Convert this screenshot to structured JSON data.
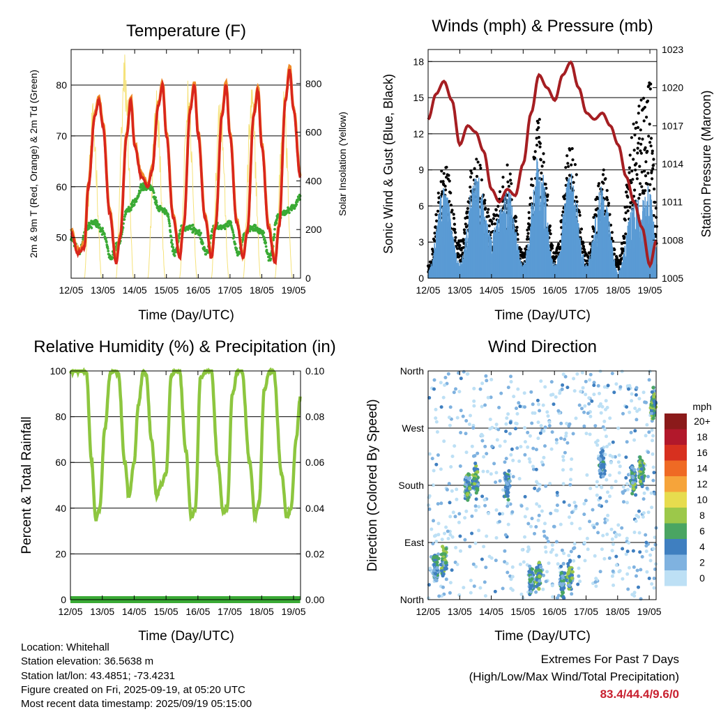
{
  "colors": {
    "temp_2m": "#d9261c",
    "temp_9m": "#f08c2a",
    "dewpoint": "#3aaa35",
    "solar": "#f5e27a",
    "gust": "#000000",
    "wind": "#5a9bd4",
    "pressure": "#a51e22",
    "humidity": "#8dc63f",
    "precip": "#3aaa35",
    "extremes_text": "#c8202f"
  },
  "time_ticks": [
    "12/05",
    "13/05",
    "14/05",
    "15/05",
    "16/05",
    "17/05",
    "18/05",
    "19/05"
  ],
  "panels": {
    "temperature": {
      "title": "Temperature (F)",
      "xlabel": "Time (Day/UTC)",
      "ylabel_left": "2m & 9m T (Red, Orange) & 2m Td (Green)",
      "ylabel_right": "Solar Insolation (Yellow)",
      "yticks_left": [
        "50",
        "60",
        "70",
        "80"
      ],
      "yticks_right": [
        "0",
        "200",
        "400",
        "600",
        "800"
      ]
    },
    "winds": {
      "title": "Winds (mph) & Pressure (mb)",
      "xlabel": "Time (Day/UTC)",
      "ylabel_left": "Sonic Wind & Gust (Blue, Black)",
      "ylabel_right": "Station Pressure (Maroon)",
      "yticks_left": [
        "0",
        "3",
        "6",
        "9",
        "12",
        "15",
        "18"
      ],
      "yticks_right": [
        "1005",
        "1008",
        "1011",
        "1014",
        "1017",
        "1020",
        "1023"
      ]
    },
    "humidity": {
      "title": "Relative Humidity (%) & Precipitation (in)",
      "xlabel": "Time (Day/UTC)",
      "ylabel_left": "Percent & Total Rainfall",
      "yticks_left": [
        "0",
        "20",
        "40",
        "60",
        "80",
        "100"
      ],
      "yticks_right": [
        "0.00",
        "0.02",
        "0.04",
        "0.06",
        "0.08",
        "0.10"
      ]
    },
    "direction": {
      "title": "Wind Direction",
      "xlabel": "Time (Day/UTC)",
      "ylabel_left": "Direction (Colored By Speed)",
      "yticks_left": [
        "North",
        "East",
        "South",
        "West",
        "North"
      ],
      "legend_title": "mph",
      "legend_labels": [
        "20+",
        "18",
        "16",
        "14",
        "12",
        "10",
        "8",
        "6",
        "4",
        "2",
        "0"
      ],
      "legend_colors": [
        "#8b1a1a",
        "#b2182b",
        "#d7301f",
        "#ef6a24",
        "#f6a43a",
        "#e7dc4e",
        "#9cc84a",
        "#4aa562",
        "#3f7fc0",
        "#7fb2e0",
        "#bde0f5"
      ]
    }
  },
  "info": {
    "location": "Location: Whitehall",
    "elevation": "Station elevation: 36.5638 m",
    "latlon": "Station lat/lon: 43.4851; -73.4231",
    "created": "Figure created on Fri, 2025-09-19, at 05:20 UTC",
    "recent": "Most recent data timestamp: 2025/09/19 05:15:00"
  },
  "extremes": {
    "line1": "Extremes For Past 7 Days",
    "line2": "(High/Low/Max Wind/Total Precipitation)",
    "values": "83.4/44.4/9.6/0"
  },
  "chart_data": [
    {
      "type": "line",
      "title": "Temperature (F)",
      "xlabel": "Time (Day/UTC)",
      "ylabel": "2m & 9m T (Red, Orange) & 2m Td (Green)",
      "ylabel_right": "Solar Insolation (Yellow)",
      "xlim": [
        "12/05",
        "19/05"
      ],
      "ylim": [
        42,
        87
      ],
      "ylim_right": [
        0,
        940
      ],
      "grid": true,
      "series": [
        {
          "name": "2m T",
          "x": [
            "12/05 00:00",
            "12/05 05:00",
            "12/05 10:00",
            "12/05 13:00",
            "12/05 18:00",
            "12/05 21:00",
            "13/05 00:00",
            "13/05 05:00",
            "13/05 10:00",
            "13/05 13:00",
            "13/05 18:00",
            "13/05 21:00",
            "14/05 00:00",
            "14/05 05:00",
            "14/05 10:00",
            "14/05 13:00",
            "14/05 18:00",
            "14/05 21:00",
            "15/05 00:00",
            "15/05 05:00",
            "15/05 10:00",
            "15/05 13:00",
            "15/05 18:00",
            "15/05 21:00",
            "16/05 00:00",
            "16/05 05:00",
            "16/05 10:00",
            "16/05 13:00",
            "16/05 18:00",
            "16/05 21:00",
            "17/05 00:00",
            "17/05 05:00",
            "17/05 10:00",
            "17/05 13:00",
            "17/05 18:00",
            "17/05 21:00",
            "18/05 00:00",
            "18/05 05:00",
            "18/05 10:00",
            "18/05 13:00",
            "18/05 18:00",
            "18/05 21:00",
            "19/05 00:00",
            "19/05 05:00"
          ],
          "values": [
            51,
            47,
            48,
            60,
            74,
            77,
            72,
            55,
            45,
            50,
            70,
            77,
            68,
            62,
            60,
            63,
            76,
            80,
            70,
            54,
            46,
            52,
            75,
            80,
            70,
            54,
            46,
            52,
            74,
            80,
            70,
            53,
            46,
            51,
            74,
            79,
            68,
            52,
            45,
            52,
            77,
            83,
            75,
            62
          ]
        },
        {
          "name": "2m Td",
          "x": [
            "12/05 00:00",
            "12/05 06:00",
            "12/05 12:00",
            "12/05 18:00",
            "13/05 00:00",
            "13/05 06:00",
            "13/05 12:00",
            "13/05 18:00",
            "14/05 00:00",
            "14/05 06:00",
            "14/05 12:00",
            "14/05 18:00",
            "15/05 00:00",
            "15/05 06:00",
            "15/05 12:00",
            "15/05 18:00",
            "16/05 00:00",
            "16/05 06:00",
            "16/05 12:00",
            "16/05 18:00",
            "17/05 00:00",
            "17/05 06:00",
            "17/05 12:00",
            "17/05 18:00",
            "18/05 00:00",
            "18/05 06:00",
            "18/05 12:00",
            "18/05 18:00",
            "19/05 00:00",
            "19/05 05:00"
          ],
          "values": [
            50,
            47,
            52,
            53,
            51,
            46,
            49,
            55,
            57,
            60,
            60,
            56,
            55,
            47,
            52,
            52,
            51,
            47,
            52,
            52,
            53,
            47,
            51,
            52,
            51,
            46,
            54,
            55,
            56,
            58
          ]
        },
        {
          "name": "Solar Insolation",
          "axis": "right",
          "peaks_per_day": [
            720,
            940,
            800,
            830,
            810,
            820,
            780
          ]
        }
      ]
    },
    {
      "type": "line",
      "title": "Winds (mph) & Pressure (mb)",
      "xlabel": "Time (Day/UTC)",
      "ylabel": "Sonic Wind & Gust (Blue, Black)",
      "ylabel_right": "Station Pressure (Maroon)",
      "xlim": [
        "12/05",
        "19/05"
      ],
      "ylim": [
        0,
        19
      ],
      "ylim_right": [
        1005,
        1023
      ],
      "grid": true,
      "series": [
        {
          "name": "Station Pressure",
          "axis": "right",
          "x": [
            "12/05 00:00",
            "12/05 06:00",
            "12/05 12:00",
            "12/05 18:00",
            "13/05 00:00",
            "13/05 06:00",
            "13/05 12:00",
            "13/05 18:00",
            "14/05 00:00",
            "14/05 06:00",
            "14/05 12:00",
            "14/05 18:00",
            "15/05 00:00",
            "15/05 06:00",
            "15/05 12:00",
            "15/05 18:00",
            "16/05 00:00",
            "16/05 06:00",
            "16/05 12:00",
            "16/05 18:00",
            "17/05 00:00",
            "17/05 06:00",
            "17/05 12:00",
            "17/05 18:00",
            "18/05 00:00",
            "18/05 06:00",
            "18/05 12:00",
            "18/05 18:00",
            "19/05 00:00",
            "19/05 05:00"
          ],
          "values": [
            1017.5,
            1019.5,
            1020.5,
            1019,
            1015.5,
            1017,
            1016.5,
            1015,
            1012,
            1011,
            1012,
            1011.5,
            1014,
            1018,
            1021,
            1020,
            1019,
            1021,
            1022,
            1020,
            1018,
            1017.5,
            1018,
            1017,
            1015.5,
            1013,
            1011,
            1009,
            1006,
            1008
          ]
        },
        {
          "name": "Sonic Wind",
          "x": [
            "12/05 00:00",
            "12/05 12:00",
            "13/05 00:00",
            "13/05 12:00",
            "14/05 00:00",
            "14/05 12:00",
            "15/05 00:00",
            "15/05 12:00",
            "16/05 00:00",
            "16/05 12:00",
            "17/05 00:00",
            "17/05 12:00",
            "18/05 00:00",
            "18/05 12:00",
            "19/05 00:00",
            "19/05 05:00"
          ],
          "values": [
            0.5,
            6,
            1,
            7,
            3,
            6,
            1,
            8,
            1,
            7,
            1,
            6,
            0.5,
            5,
            6,
            2
          ]
        },
        {
          "name": "Gust",
          "x": [
            "12/05 00:00",
            "12/05 12:00",
            "13/05 00:00",
            "13/05 12:00",
            "14/05 00:00",
            "14/05 12:00",
            "15/05 00:00",
            "15/05 12:00",
            "16/05 00:00",
            "16/05 12:00",
            "17/05 00:00",
            "17/05 12:00",
            "18/05 00:00",
            "18/05 12:00",
            "19/05 00:00",
            "19/05 05:00"
          ],
          "values": [
            1,
            9.5,
            3,
            10,
            5,
            9,
            2,
            13,
            2,
            11,
            2,
            9,
            1.5,
            13,
            16,
            6
          ]
        }
      ]
    },
    {
      "type": "line",
      "title": "Relative Humidity (%) & Precipitation (in)",
      "xlabel": "Time (Day/UTC)",
      "ylabel": "Percent & Total Rainfall",
      "xlim": [
        "12/05",
        "19/05"
      ],
      "ylim": [
        0,
        100
      ],
      "ylim_right": [
        0.0,
        0.1
      ],
      "grid": true,
      "series": [
        {
          "name": "Relative Humidity",
          "x": [
            "12/05 00:00",
            "12/05 09:00",
            "12/05 12:00",
            "12/05 16:00",
            "12/05 19:00",
            "12/05 22:00",
            "13/05 02:00",
            "13/05 06:00",
            "13/05 09:00",
            "13/05 12:00",
            "13/05 17:00",
            "13/05 20:00",
            "14/05 00:00",
            "14/05 03:00",
            "14/05 07:00",
            "14/05 09:00",
            "14/05 13:00",
            "14/05 17:00",
            "14/05 20:00",
            "15/05 00:00",
            "15/05 04:00",
            "15/05 07:00",
            "15/05 10:00",
            "15/05 15:00",
            "15/05 19:00",
            "15/05 22:00",
            "16/05 02:00",
            "16/05 06:00",
            "16/05 10:00",
            "16/05 15:00",
            "16/05 19:00",
            "16/05 22:00",
            "17/05 02:00",
            "17/05 06:00",
            "17/05 09:00",
            "17/05 15:00",
            "17/05 19:00",
            "17/05 22:00",
            "18/05 02:00",
            "18/05 06:00",
            "18/05 09:00",
            "18/05 15:00",
            "18/05 19:00",
            "18/05 22:00",
            "19/05 02:00",
            "19/05 05:00"
          ],
          "values": [
            100,
            100,
            99,
            60,
            35,
            40,
            75,
            99,
            100,
            99,
            60,
            45,
            60,
            85,
            100,
            98,
            70,
            45,
            50,
            55,
            98,
            100,
            100,
            65,
            36,
            40,
            97,
            100,
            100,
            60,
            38,
            40,
            90,
            100,
            100,
            60,
            36,
            42,
            92,
            100,
            100,
            55,
            36,
            40,
            70,
            88
          ]
        },
        {
          "name": "Total Precipitation",
          "axis": "right",
          "x": [
            "12/05 00:00",
            "19/05 05:00"
          ],
          "values": [
            0.0,
            0.0
          ]
        }
      ]
    },
    {
      "type": "scatter",
      "title": "Wind Direction",
      "xlabel": "Time (Day/UTC)",
      "ylabel": "Direction (Colored By Speed)",
      "xlim": [
        "12/05",
        "19/05"
      ],
      "y_categories": [
        "North",
        "East",
        "South",
        "West",
        "North"
      ],
      "ylim": [
        0,
        360
      ],
      "color_scale": {
        "title": "mph",
        "levels": [
          "0",
          "2",
          "4",
          "6",
          "8",
          "10",
          "12",
          "14",
          "16",
          "18",
          "20+"
        ]
      },
      "points_summary": [
        {
          "x": "12/05 06:00",
          "direction": 50,
          "speed": 6
        },
        {
          "x": "12/05 12:00",
          "direction": 60,
          "speed": 8
        },
        {
          "x": "13/05 06:00",
          "direction": 180,
          "speed": 7
        },
        {
          "x": "13/05 12:00",
          "direction": 190,
          "speed": 8
        },
        {
          "x": "14/05 12:00",
          "direction": 180,
          "speed": 5
        },
        {
          "x": "15/05 06:00",
          "direction": 30,
          "speed": 6
        },
        {
          "x": "15/05 12:00",
          "direction": 40,
          "speed": 8
        },
        {
          "x": "16/05 06:00",
          "direction": 30,
          "speed": 6
        },
        {
          "x": "16/05 12:00",
          "direction": 35,
          "speed": 8
        },
        {
          "x": "17/05 12:00",
          "direction": 210,
          "speed": 5
        },
        {
          "x": "18/05 12:00",
          "direction": 190,
          "speed": 7
        },
        {
          "x": "18/05 18:00",
          "direction": 200,
          "speed": 8
        },
        {
          "x": "19/05 03:00",
          "direction": 310,
          "speed": 8
        }
      ]
    }
  ]
}
